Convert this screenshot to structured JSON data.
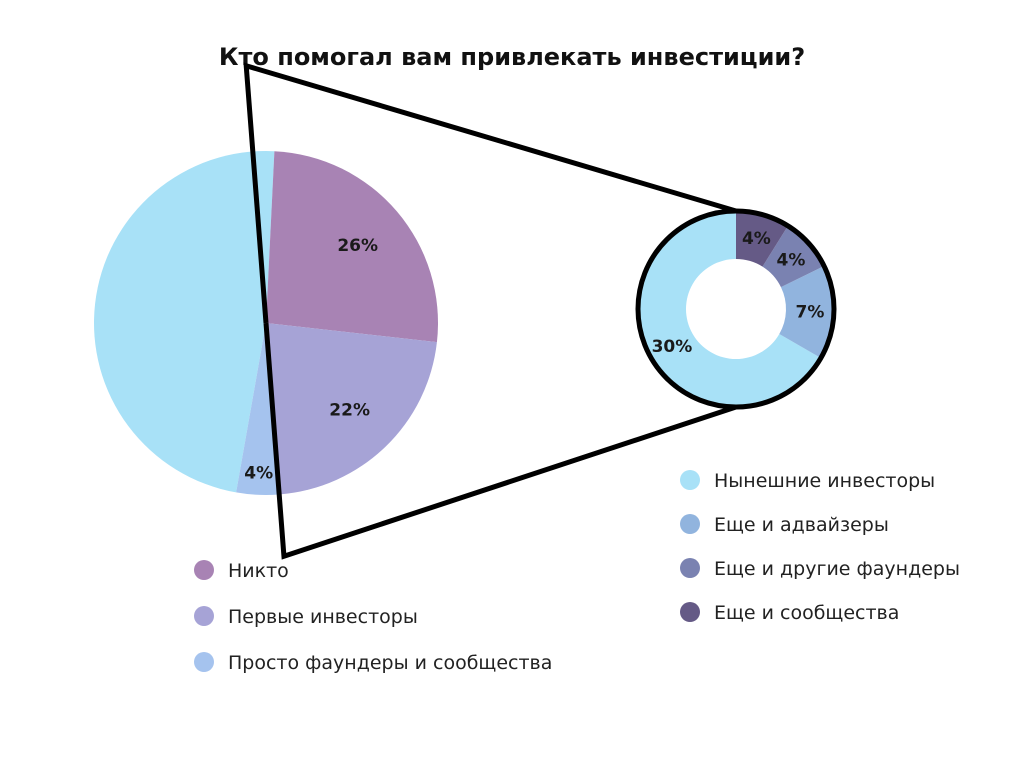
{
  "title": "Кто помогал вам привлекать инвестиции?",
  "chart_data": [
    {
      "type": "pie",
      "title": "",
      "slices": [
        {
          "label": "Нынешние инвесторы",
          "value": 48,
          "color": "#a8e1f7",
          "display": ""
        },
        {
          "label": "Никто",
          "value": 26,
          "color": "#a883b4",
          "display": "26%"
        },
        {
          "label": "Первые инвесторы",
          "value": 22,
          "color": "#a6a3d6",
          "display": "22%"
        },
        {
          "label": "Просто фаундеры и сообщества",
          "value": 4,
          "color": "#a5c3ee",
          "display": "4%"
        }
      ],
      "legend": [
        {
          "label": "Никто",
          "color": "#a883b4"
        },
        {
          "label": "Первые инвесторы",
          "color": "#a6a3d6"
        },
        {
          "label": "Просто фаундеры и сообщества",
          "color": "#a5c3ee"
        }
      ],
      "legend_position": "bottom"
    },
    {
      "type": "donut",
      "title": "",
      "slices": [
        {
          "label": "Нынешние инвесторы",
          "value": 30,
          "color": "#a8e1f7",
          "display": "30%"
        },
        {
          "label": "Еще и адвайзеры",
          "value": 7,
          "color": "#91b4de",
          "display": "7%"
        },
        {
          "label": "Еще и другие фаундеры",
          "value": 4,
          "color": "#7a82b1",
          "display": "4%"
        },
        {
          "label": "Еще и сообщества",
          "value": 4,
          "color": "#655a86",
          "display": "4%"
        }
      ],
      "legend": [
        {
          "label": "Нынешние инвесторы",
          "color": "#a8e1f7"
        },
        {
          "label": "Еще и адвайзеры",
          "color": "#91b4de"
        },
        {
          "label": "Еще и другие фаундеры",
          "color": "#7a82b1"
        },
        {
          "label": "Еще и сообщества",
          "color": "#655a86"
        }
      ],
      "legend_position": "right"
    }
  ]
}
